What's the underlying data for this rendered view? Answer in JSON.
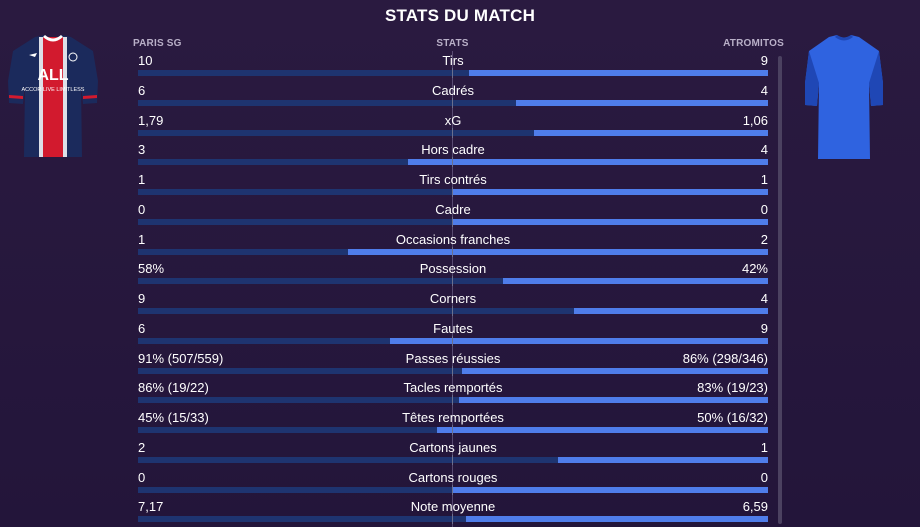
{
  "title": "STATS DU MATCH",
  "home_team": "PARIS SG",
  "stats_header": "STATS",
  "away_team": "ATROMITOS",
  "home_kit": {
    "colors": {
      "body": "#1b2a5c",
      "stripe": "#d21a2e",
      "trim": "#ffffff"
    },
    "text": "ALL ACCOR LIVE LIMITLESS"
  },
  "away_kit": {
    "colors": {
      "body": "#2f63e0",
      "shade": "#1f47b5"
    }
  },
  "colors": {
    "home_bar": "#1e3470",
    "away_bar": "#4f7dea",
    "background": "#25163a"
  },
  "rows": [
    {
      "label": "Tirs",
      "home": "10",
      "away": "9",
      "home_share": 0.526
    },
    {
      "label": "Cadrés",
      "home": "6",
      "away": "4",
      "home_share": 0.6
    },
    {
      "label": "xG",
      "home": "1,79",
      "away": "1,06",
      "home_share": 0.628
    },
    {
      "label": "Hors cadre",
      "home": "3",
      "away": "4",
      "home_share": 0.429
    },
    {
      "label": "Tirs contrés",
      "home": "1",
      "away": "1",
      "home_share": 0.5
    },
    {
      "label": "Cadre",
      "home": "0",
      "away": "0",
      "home_share": 0.5
    },
    {
      "label": "Occasions franches",
      "home": "1",
      "away": "2",
      "home_share": 0.333
    },
    {
      "label": "Possession",
      "home": "58%",
      "away": "42%",
      "home_share": 0.58
    },
    {
      "label": "Corners",
      "home": "9",
      "away": "4",
      "home_share": 0.692
    },
    {
      "label": "Fautes",
      "home": "6",
      "away": "9",
      "home_share": 0.4
    },
    {
      "label": "Passes réussies",
      "home": "91% (507/559)",
      "away": "86% (298/346)",
      "home_share": 0.514
    },
    {
      "label": "Tacles remportés",
      "home": "86% (19/22)",
      "away": "83% (19/23)",
      "home_share": 0.509
    },
    {
      "label": "Têtes remportées",
      "home": "45% (15/33)",
      "away": "50% (16/32)",
      "home_share": 0.474
    },
    {
      "label": "Cartons jaunes",
      "home": "2",
      "away": "1",
      "home_share": 0.667
    },
    {
      "label": "Cartons rouges",
      "home": "0",
      "away": "0",
      "home_share": 0.5
    },
    {
      "label": "Note moyenne",
      "home": "7,17",
      "away": "6,59",
      "home_share": 0.521
    }
  ]
}
